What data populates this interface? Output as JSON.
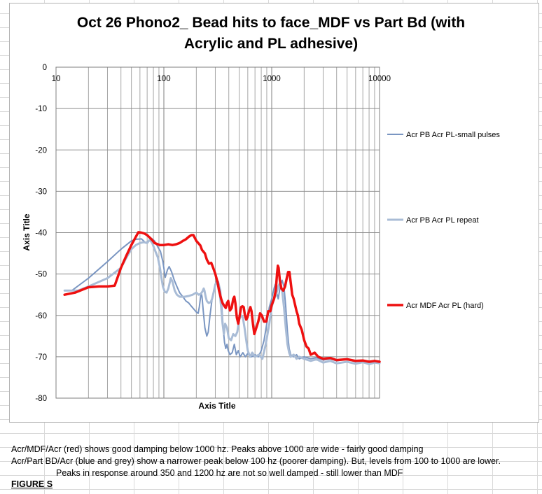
{
  "chart_data": {
    "type": "line",
    "title_lines": [
      "Oct 26 Phono2_ Bead hits to face_MDF vs Part Bd (with",
      "Acrylic and PL adhesive)"
    ],
    "xlabel": "Axis Title",
    "ylabel": "Axis Title",
    "x_scale": "log",
    "xlim": [
      10,
      10000
    ],
    "ylim": [
      -80,
      0
    ],
    "x_ticks": [
      "10",
      "100",
      "1000",
      "10000"
    ],
    "y_ticks": [
      "0",
      "-10",
      "-20",
      "-30",
      "-40",
      "-50",
      "-60",
      "-70",
      "-80"
    ],
    "grid": true,
    "legend_position": "right",
    "series": [
      {
        "name": "Acr PB Acr PL-small pulses",
        "color": "#7a96c2",
        "width": 2,
        "points": [
          [
            12,
            -54
          ],
          [
            14,
            -54
          ],
          [
            20,
            -51
          ],
          [
            30,
            -47
          ],
          [
            40,
            -44
          ],
          [
            50,
            -42
          ],
          [
            55,
            -41.6
          ],
          [
            62,
            -41.5
          ],
          [
            68,
            -42.5
          ],
          [
            72,
            -42
          ],
          [
            76,
            -41.3
          ],
          [
            82,
            -42
          ],
          [
            88,
            -43.5
          ],
          [
            93,
            -44.5
          ],
          [
            98,
            -47
          ],
          [
            103,
            -50.8
          ],
          [
            108,
            -49
          ],
          [
            112,
            -48.2
          ],
          [
            118,
            -49.5
          ],
          [
            125,
            -51.5
          ],
          [
            132,
            -53
          ],
          [
            140,
            -54.5
          ],
          [
            150,
            -55.5
          ],
          [
            160,
            -56.5
          ],
          [
            170,
            -57
          ],
          [
            180,
            -57.8
          ],
          [
            190,
            -58.5
          ],
          [
            200,
            -59.2
          ],
          [
            208,
            -59.5
          ],
          [
            213,
            -58
          ],
          [
            218,
            -56
          ],
          [
            222,
            -54.5
          ],
          [
            226,
            -55.5
          ],
          [
            232,
            -59
          ],
          [
            240,
            -63
          ],
          [
            250,
            -65
          ],
          [
            258,
            -64
          ],
          [
            268,
            -60
          ],
          [
            280,
            -56
          ],
          [
            290,
            -54
          ],
          [
            300,
            -52.5
          ],
          [
            310,
            -51.5
          ],
          [
            320,
            -51.8
          ],
          [
            335,
            -54
          ],
          [
            345,
            -58
          ],
          [
            355,
            -63
          ],
          [
            365,
            -66.5
          ],
          [
            375,
            -68
          ],
          [
            385,
            -67
          ],
          [
            395,
            -68.5
          ],
          [
            410,
            -69.5
          ],
          [
            430,
            -69
          ],
          [
            450,
            -67
          ],
          [
            470,
            -69.5
          ],
          [
            490,
            -68.5
          ],
          [
            510,
            -70
          ],
          [
            540,
            -69
          ],
          [
            570,
            -70
          ],
          [
            600,
            -69.2
          ],
          [
            650,
            -70
          ],
          [
            700,
            -69.5
          ],
          [
            750,
            -70
          ],
          [
            800,
            -68.5
          ],
          [
            850,
            -66
          ],
          [
            900,
            -62
          ],
          [
            950,
            -58
          ],
          [
            1000,
            -56
          ],
          [
            1050,
            -53.5
          ],
          [
            1080,
            -52.5
          ],
          [
            1100,
            -54
          ],
          [
            1150,
            -56
          ],
          [
            1200,
            -53
          ],
          [
            1250,
            -51.5
          ],
          [
            1300,
            -53
          ],
          [
            1350,
            -58
          ],
          [
            1400,
            -64
          ],
          [
            1450,
            -68
          ],
          [
            1500,
            -69.5
          ],
          [
            1600,
            -70
          ],
          [
            1700,
            -69.5
          ],
          [
            1800,
            -70.5
          ],
          [
            2000,
            -70
          ],
          [
            2300,
            -70.5
          ],
          [
            2600,
            -70.2
          ],
          [
            3000,
            -70.8
          ],
          [
            3500,
            -70.5
          ],
          [
            4000,
            -71
          ],
          [
            5000,
            -70.6
          ],
          [
            6000,
            -71.2
          ],
          [
            7000,
            -70.8
          ],
          [
            8000,
            -71.3
          ],
          [
            9000,
            -71
          ],
          [
            10000,
            -71.2
          ]
        ]
      },
      {
        "name": "Acr PB Acr PL repeat",
        "color": "#a9bcd6",
        "width": 3,
        "points": [
          [
            12,
            -54
          ],
          [
            16,
            -54
          ],
          [
            20,
            -53
          ],
          [
            30,
            -51
          ],
          [
            40,
            -48.5
          ],
          [
            45,
            -46
          ],
          [
            50,
            -44
          ],
          [
            55,
            -43
          ],
          [
            60,
            -42.5
          ],
          [
            65,
            -42.3
          ],
          [
            70,
            -42.5
          ],
          [
            74,
            -41.7
          ],
          [
            78,
            -42.5
          ],
          [
            82,
            -44
          ],
          [
            88,
            -46
          ],
          [
            92,
            -48.5
          ],
          [
            95,
            -51
          ],
          [
            98,
            -53
          ],
          [
            102,
            -54.3
          ],
          [
            106,
            -54.5
          ],
          [
            110,
            -53.5
          ],
          [
            116,
            -51
          ],
          [
            120,
            -51.8
          ],
          [
            126,
            -54
          ],
          [
            132,
            -55
          ],
          [
            140,
            -55.5
          ],
          [
            155,
            -55.5
          ],
          [
            170,
            -55.3
          ],
          [
            185,
            -55
          ],
          [
            200,
            -54.5
          ],
          [
            210,
            -55
          ],
          [
            220,
            -54.8
          ],
          [
            228,
            -54.2
          ],
          [
            234,
            -53.5
          ],
          [
            238,
            -54
          ],
          [
            244,
            -55.5
          ],
          [
            250,
            -56.5
          ],
          [
            260,
            -57
          ],
          [
            272,
            -56.8
          ],
          [
            280,
            -56
          ],
          [
            292,
            -54
          ],
          [
            300,
            -52.5
          ],
          [
            312,
            -52
          ],
          [
            325,
            -53
          ],
          [
            340,
            -58
          ],
          [
            350,
            -62
          ],
          [
            360,
            -64.5
          ],
          [
            370,
            -62
          ],
          [
            385,
            -63
          ],
          [
            400,
            -65.5
          ],
          [
            420,
            -66
          ],
          [
            440,
            -64.5
          ],
          [
            460,
            -65
          ],
          [
            480,
            -64
          ],
          [
            500,
            -61
          ],
          [
            520,
            -60
          ],
          [
            540,
            -60.5
          ],
          [
            560,
            -63
          ],
          [
            580,
            -66
          ],
          [
            600,
            -68.5
          ],
          [
            630,
            -70
          ],
          [
            660,
            -69
          ],
          [
            700,
            -70
          ],
          [
            760,
            -69.5
          ],
          [
            820,
            -70.5
          ],
          [
            880,
            -67
          ],
          [
            950,
            -62
          ],
          [
            1000,
            -58
          ],
          [
            1050,
            -56
          ],
          [
            1100,
            -55
          ],
          [
            1150,
            -53
          ],
          [
            1200,
            -52
          ],
          [
            1250,
            -54
          ],
          [
            1300,
            -58
          ],
          [
            1350,
            -63
          ],
          [
            1400,
            -67
          ],
          [
            1450,
            -69
          ],
          [
            1500,
            -70
          ],
          [
            1600,
            -69.5
          ],
          [
            1700,
            -70.5
          ],
          [
            1800,
            -70
          ],
          [
            2000,
            -70.5
          ],
          [
            2300,
            -71
          ],
          [
            2600,
            -70.6
          ],
          [
            3000,
            -71.4
          ],
          [
            3500,
            -71
          ],
          [
            4000,
            -71.6
          ],
          [
            5000,
            -71.2
          ],
          [
            6000,
            -71.7
          ],
          [
            7000,
            -71.3
          ],
          [
            8000,
            -71.8
          ],
          [
            9000,
            -71.4
          ],
          [
            10000,
            -71.6
          ]
        ]
      },
      {
        "name": "Acr MDF Acr PL (hard)",
        "color": "#ee1010",
        "width": 3.5,
        "points": [
          [
            12,
            -55
          ],
          [
            15,
            -54.5
          ],
          [
            20,
            -53.2
          ],
          [
            25,
            -53
          ],
          [
            30,
            -53
          ],
          [
            35,
            -52.8
          ],
          [
            40,
            -48.5
          ],
          [
            45,
            -45.5
          ],
          [
            50,
            -43
          ],
          [
            55,
            -41
          ],
          [
            58,
            -39.9
          ],
          [
            62,
            -40
          ],
          [
            66,
            -40.2
          ],
          [
            70,
            -40.6
          ],
          [
            74,
            -41.2
          ],
          [
            78,
            -41.8
          ],
          [
            82,
            -42.5
          ],
          [
            88,
            -42.8
          ],
          [
            92,
            -43
          ],
          [
            100,
            -43
          ],
          [
            110,
            -42.8
          ],
          [
            120,
            -43
          ],
          [
            130,
            -42.8
          ],
          [
            140,
            -42.5
          ],
          [
            150,
            -42
          ],
          [
            160,
            -41.6
          ],
          [
            170,
            -41
          ],
          [
            180,
            -40.6
          ],
          [
            188,
            -40.6
          ],
          [
            194,
            -41.3
          ],
          [
            200,
            -42
          ],
          [
            210,
            -42.6
          ],
          [
            218,
            -43.1
          ],
          [
            226,
            -44.2
          ],
          [
            240,
            -45
          ],
          [
            250,
            -46.5
          ],
          [
            262,
            -47.5
          ],
          [
            275,
            -47.3
          ],
          [
            285,
            -48.3
          ],
          [
            300,
            -50
          ],
          [
            315,
            -52
          ],
          [
            325,
            -54
          ],
          [
            340,
            -56
          ],
          [
            350,
            -57
          ],
          [
            365,
            -57.8
          ],
          [
            375,
            -58.2
          ],
          [
            385,
            -57
          ],
          [
            395,
            -56.5
          ],
          [
            410,
            -58.8
          ],
          [
            425,
            -58.2
          ],
          [
            440,
            -56
          ],
          [
            450,
            -55.5
          ],
          [
            460,
            -57
          ],
          [
            475,
            -60.5
          ],
          [
            490,
            -62
          ],
          [
            505,
            -60
          ],
          [
            520,
            -58
          ],
          [
            535,
            -57.8
          ],
          [
            550,
            -58
          ],
          [
            565,
            -60
          ],
          [
            580,
            -61
          ],
          [
            595,
            -60.5
          ],
          [
            615,
            -59
          ],
          [
            635,
            -58
          ],
          [
            650,
            -59
          ],
          [
            670,
            -62
          ],
          [
            690,
            -64.5
          ],
          [
            720,
            -63
          ],
          [
            750,
            -61.5
          ],
          [
            780,
            -59.5
          ],
          [
            810,
            -60
          ],
          [
            850,
            -61.5
          ],
          [
            890,
            -61.5
          ],
          [
            930,
            -59
          ],
          [
            970,
            -59
          ],
          [
            1000,
            -57.5
          ],
          [
            1050,
            -56
          ],
          [
            1090,
            -54
          ],
          [
            1120,
            -50
          ],
          [
            1140,
            -48
          ],
          [
            1160,
            -48.5
          ],
          [
            1190,
            -51.5
          ],
          [
            1230,
            -53.5
          ],
          [
            1280,
            -54
          ],
          [
            1330,
            -53
          ],
          [
            1380,
            -51
          ],
          [
            1420,
            -49.5
          ],
          [
            1460,
            -49.5
          ],
          [
            1500,
            -52
          ],
          [
            1550,
            -55
          ],
          [
            1600,
            -56
          ],
          [
            1700,
            -59
          ],
          [
            1750,
            -60
          ],
          [
            1800,
            -62
          ],
          [
            1900,
            -63.5
          ],
          [
            2000,
            -66
          ],
          [
            2100,
            -67.5
          ],
          [
            2200,
            -68
          ],
          [
            2300,
            -69.5
          ],
          [
            2500,
            -69
          ],
          [
            2700,
            -70
          ],
          [
            3000,
            -70.5
          ],
          [
            3500,
            -70.3
          ],
          [
            4000,
            -70.8
          ],
          [
            5000,
            -70.6
          ],
          [
            6000,
            -71
          ],
          [
            7000,
            -70.9
          ],
          [
            8000,
            -71.2
          ],
          [
            9000,
            -71
          ],
          [
            10000,
            -71.2
          ]
        ]
      }
    ]
  },
  "notes": {
    "line1": "Acr/MDF/Acr (red) shows good damping below 1000 hz. Peaks above 1000 are wide - fairly good damping",
    "line2": "Acr/Part BD/Acr (blue and grey) show a narrower peak below 100 hz (poorer damping). But, levels from 100 to 1000 are lower.",
    "line3": "Peaks in response around 350 and 1200 hz are not so well damped - still lower than MDF",
    "figure_label": "FIGURE S"
  }
}
